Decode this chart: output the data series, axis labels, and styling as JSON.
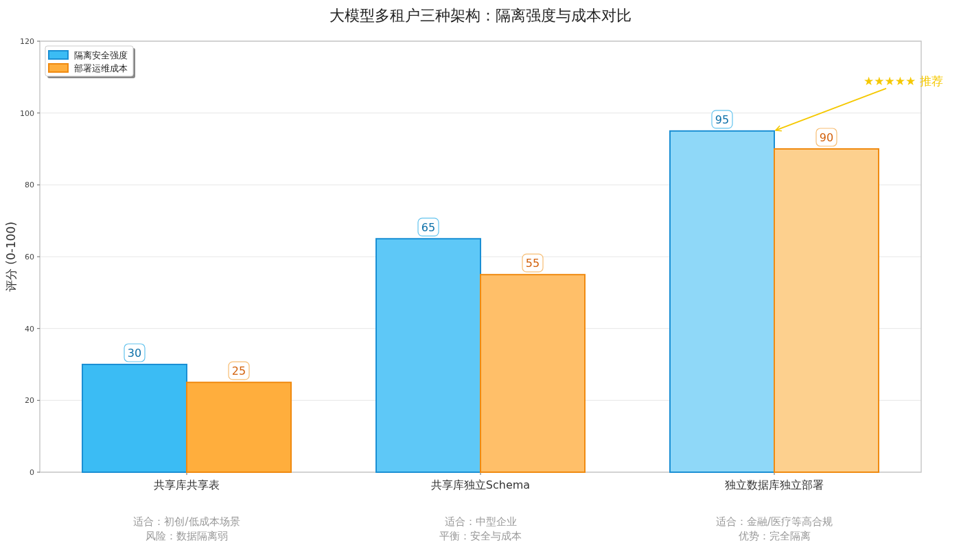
{
  "chart_data": {
    "type": "bar",
    "title": "大模型多租户三种架构：隔离强度与成本对比",
    "ylabel": "评分 (0-100)",
    "categories": [
      "共享库共享表",
      "共享库独立Schema",
      "独立数据库独立部署"
    ],
    "series": [
      {
        "name": "隔离安全强度",
        "color": "#3bbcf4",
        "colors": [
          "#3bbcf4",
          "#5ec8f7",
          "#8fd8f8"
        ],
        "values": [
          30,
          65,
          95
        ]
      },
      {
        "name": "部署运维成本",
        "color": "#ffae3d",
        "colors": [
          "#ffae3d",
          "#ffbf69",
          "#fdd08e"
        ],
        "values": [
          25,
          55,
          90
        ]
      }
    ],
    "ylim": [
      0,
      120
    ],
    "yticks": [
      0,
      20,
      40,
      60,
      80,
      100,
      120
    ],
    "grid": "y",
    "legend": "top left",
    "data_labels": true,
    "annotations": [
      {
        "text": "★★★★★ 推荐",
        "x": "独立数据库独立部署",
        "y": 95
      },
      "适合：初创/低成本场景",
      "风险：数据隔离弱",
      "适合：中型企业",
      "平衡：安全与成本",
      "适合：金融/医疗等高合规",
      "优势：完全隔离"
    ]
  }
}
